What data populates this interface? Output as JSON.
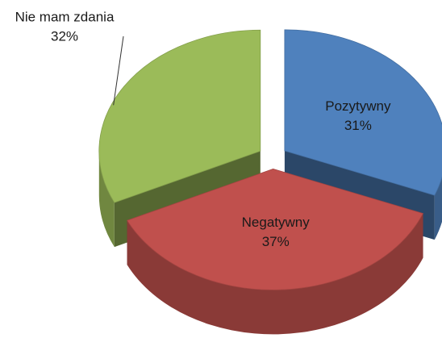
{
  "chart_data": {
    "type": "pie3d",
    "categories": [
      "Pozytywny",
      "Negatywny",
      "Nie mam zdania"
    ],
    "values": [
      31,
      37,
      32
    ],
    "value_labels": [
      "31%",
      "37%",
      "32%"
    ],
    "colors": [
      "#4f81bd",
      "#c0504d",
      "#9bbb59"
    ]
  }
}
